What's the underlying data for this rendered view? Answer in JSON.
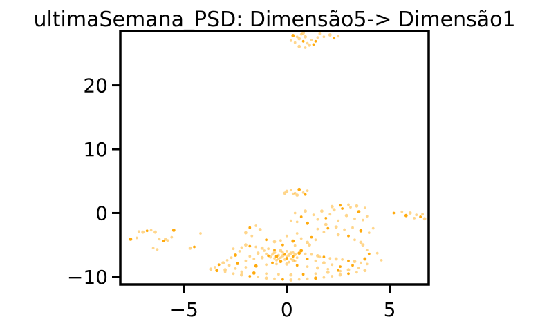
{
  "chart_data": {
    "type": "scatter",
    "title": "ultimaSemana_PSD: Dimensão5-> Dimensão1",
    "xlabel": "",
    "ylabel": "",
    "xlim": [
      -8.1,
      6.9
    ],
    "ylim": [
      -11.2,
      28.5
    ],
    "xticks": [
      {
        "value": -5,
        "label": "−5"
      },
      {
        "value": 0,
        "label": "0"
      },
      {
        "value": 5,
        "label": "5"
      }
    ],
    "yticks": [
      {
        "value": -10,
        "label": "−10"
      },
      {
        "value": 0,
        "label": "0"
      },
      {
        "value": 10,
        "label": "10"
      },
      {
        "value": 20,
        "label": "20"
      }
    ],
    "grid": false,
    "legend": "none",
    "point_color": "#FFA500",
    "series": [
      {
        "points": [
          [
            -7.6,
            -4.1
          ],
          [
            -7.3,
            -3.9
          ],
          [
            -7.2,
            -2.9
          ],
          [
            -7.0,
            -3.0
          ],
          [
            -6.8,
            -2.8
          ],
          [
            -6.6,
            -2.7
          ],
          [
            -6.4,
            -3.0
          ],
          [
            -6.2,
            -4.1
          ],
          [
            -6.0,
            -4.4
          ],
          [
            -5.9,
            -4.1
          ],
          [
            -5.8,
            -4.3
          ],
          [
            -5.6,
            -3.8
          ],
          [
            -5.5,
            -2.7
          ],
          [
            -6.5,
            -5.5
          ],
          [
            -6.3,
            -5.7
          ],
          [
            -4.7,
            -5.5
          ],
          [
            -4.5,
            -5.3
          ],
          [
            -4.2,
            -3.2
          ],
          [
            -3.7,
            -8.8
          ],
          [
            -3.5,
            -8.5
          ],
          [
            -3.3,
            -8.1
          ],
          [
            -3.1,
            -7.8
          ],
          [
            -2.9,
            -7.4
          ],
          [
            -2.7,
            -7.0
          ],
          [
            -2.5,
            -6.6
          ],
          [
            -2.3,
            -6.0
          ],
          [
            -2.2,
            -5.4
          ],
          [
            -2.0,
            -5.0
          ],
          [
            -1.8,
            -5.2
          ],
          [
            -1.5,
            -5.3
          ],
          [
            -1.2,
            -5.5
          ],
          [
            -0.9,
            -5.6
          ],
          [
            -0.6,
            -5.8
          ],
          [
            -0.3,
            -5.9
          ],
          [
            0.0,
            -6.0
          ],
          [
            0.3,
            -6.2
          ],
          [
            0.6,
            -6.3
          ],
          [
            0.9,
            -6.4
          ],
          [
            1.2,
            -6.5
          ],
          [
            1.5,
            -6.7
          ],
          [
            1.8,
            -6.9
          ],
          [
            2.1,
            -7.1
          ],
          [
            2.4,
            -7.2
          ],
          [
            2.7,
            -7.3
          ],
          [
            3.0,
            -7.5
          ],
          [
            3.3,
            -7.6
          ],
          [
            3.6,
            -7.8
          ],
          [
            3.9,
            -8.0
          ],
          [
            -3.4,
            -9.0
          ],
          [
            -3.0,
            -9.2
          ],
          [
            -2.6,
            -9.5
          ],
          [
            -2.2,
            -9.7
          ],
          [
            -1.8,
            -9.9
          ],
          [
            -1.4,
            -10.0
          ],
          [
            -1.0,
            -10.2
          ],
          [
            -0.6,
            -10.3
          ],
          [
            -0.2,
            -10.4
          ],
          [
            0.2,
            -10.5
          ],
          [
            0.6,
            -10.4
          ],
          [
            1.0,
            -10.3
          ],
          [
            1.4,
            -10.2
          ],
          [
            1.8,
            -10.1
          ],
          [
            2.2,
            -9.9
          ],
          [
            2.6,
            -9.7
          ],
          [
            3.0,
            -9.5
          ],
          [
            3.4,
            -9.3
          ],
          [
            3.8,
            -9.0
          ],
          [
            -1.0,
            -6.4
          ],
          [
            -0.9,
            -6.7
          ],
          [
            -0.8,
            -6.9
          ],
          [
            -0.7,
            -6.5
          ],
          [
            -0.6,
            -7.1
          ],
          [
            -0.5,
            -6.8
          ],
          [
            -0.4,
            -6.6
          ],
          [
            -0.3,
            -7.0
          ],
          [
            -0.2,
            -6.7
          ],
          [
            -0.1,
            -6.5
          ],
          [
            0.0,
            -6.9
          ],
          [
            0.1,
            -6.6
          ],
          [
            0.2,
            -7.2
          ],
          [
            0.3,
            -6.8
          ],
          [
            0.4,
            -6.5
          ],
          [
            0.5,
            -7.0
          ],
          [
            -0.5,
            -7.4
          ],
          [
            -0.3,
            -7.6
          ],
          [
            -0.1,
            -7.3
          ],
          [
            0.1,
            -7.7
          ],
          [
            0.3,
            -7.4
          ],
          [
            -0.7,
            -7.8
          ],
          [
            -0.2,
            -6.2
          ],
          [
            0.2,
            -6.3
          ],
          [
            -0.4,
            -7.2
          ],
          [
            0.0,
            -7.1
          ],
          [
            -0.6,
            -6.2
          ],
          [
            0.4,
            -7.5
          ],
          [
            -2.8,
            -8.2
          ],
          [
            -2.4,
            -7.9
          ],
          [
            -2.0,
            -7.5
          ],
          [
            -1.6,
            -7.2
          ],
          [
            -1.2,
            -7.0
          ],
          [
            1.0,
            -7.2
          ],
          [
            1.4,
            -7.5
          ],
          [
            1.8,
            -7.8
          ],
          [
            2.2,
            -8.1
          ],
          [
            2.6,
            -8.4
          ],
          [
            -3.0,
            -8.9
          ],
          [
            -2.5,
            -8.7
          ],
          [
            -2.0,
            -8.5
          ],
          [
            -1.5,
            -8.3
          ],
          [
            -1.0,
            -8.1
          ],
          [
            -0.5,
            -8.0
          ],
          [
            0.0,
            -8.0
          ],
          [
            0.5,
            -8.2
          ],
          [
            1.0,
            -8.4
          ],
          [
            1.5,
            -8.6
          ],
          [
            2.0,
            -8.8
          ],
          [
            2.5,
            -9.0
          ],
          [
            3.0,
            -8.9
          ],
          [
            3.5,
            -8.6
          ],
          [
            -2.2,
            -9.2
          ],
          [
            -1.6,
            -9.4
          ],
          [
            -1.0,
            -9.5
          ],
          [
            -0.4,
            -9.6
          ],
          [
            0.2,
            -9.7
          ],
          [
            0.8,
            -9.6
          ],
          [
            1.4,
            -9.5
          ],
          [
            2.0,
            -9.3
          ],
          [
            2.6,
            -9.1
          ],
          [
            3.2,
            -8.2
          ],
          [
            -1.4,
            -6.3
          ],
          [
            -1.8,
            -6.8
          ],
          [
            1.6,
            -6.9
          ],
          [
            0.7,
            -5.9
          ],
          [
            -1.1,
            -5.9
          ],
          [
            -2.6,
            -5.6
          ],
          [
            -2.0,
            -3.1
          ],
          [
            -1.8,
            -2.3
          ],
          [
            -1.5,
            -2.0
          ],
          [
            -1.3,
            -2.6
          ],
          [
            -1.7,
            -3.6
          ],
          [
            -1.0,
            -4.2
          ],
          [
            -0.6,
            -4.5
          ],
          [
            -0.3,
            -4.3
          ],
          [
            0.0,
            -3.6
          ],
          [
            0.3,
            -4.4
          ],
          [
            0.5,
            -3.2
          ],
          [
            0.7,
            -4.0
          ],
          [
            1.0,
            -4.6
          ],
          [
            1.2,
            -3.8
          ],
          [
            1.4,
            -4.2
          ],
          [
            1.1,
            -5.0
          ],
          [
            0.4,
            -5.1
          ],
          [
            -0.2,
            -5.0
          ],
          [
            0.0,
            3.4
          ],
          [
            0.2,
            3.6
          ],
          [
            0.4,
            3.1
          ],
          [
            0.6,
            3.7
          ],
          [
            0.8,
            3.2
          ],
          [
            1.0,
            3.5
          ],
          [
            0.5,
            2.8
          ],
          [
            0.9,
            2.9
          ],
          [
            0.3,
            3.0
          ],
          [
            -0.1,
            3.1
          ],
          [
            0.4,
            0.0
          ],
          [
            0.7,
            -0.6
          ],
          [
            0.9,
            0.3
          ],
          [
            0.5,
            -1.4
          ],
          [
            0.2,
            -1.2
          ],
          [
            1.0,
            -1.6
          ],
          [
            1.3,
            -0.3
          ],
          [
            1.5,
            -1.0
          ],
          [
            1.7,
            0.3
          ],
          [
            1.9,
            -0.8
          ],
          [
            2.1,
            -0.2
          ],
          [
            2.3,
            0.5
          ],
          [
            2.5,
            -1.2
          ],
          [
            2.7,
            0.7
          ],
          [
            2.9,
            -0.4
          ],
          [
            3.1,
            0.9
          ],
          [
            3.3,
            -0.9
          ],
          [
            3.5,
            0.2
          ],
          [
            3.7,
            -1.1
          ],
          [
            3.9,
            -0.5
          ],
          [
            2.2,
            1.0
          ],
          [
            2.6,
            1.2
          ],
          [
            3.0,
            1.3
          ],
          [
            3.4,
            1.1
          ],
          [
            3.8,
            0.8
          ],
          [
            2.0,
            -2.4
          ],
          [
            2.4,
            -2.2
          ],
          [
            2.8,
            -2.6
          ],
          [
            3.2,
            -2.3
          ],
          [
            3.6,
            -2.8
          ],
          [
            4.0,
            -3.1
          ],
          [
            4.2,
            -2.4
          ],
          [
            2.5,
            -3.4
          ],
          [
            3.0,
            -3.6
          ],
          [
            3.3,
            -4.2
          ],
          [
            3.7,
            -5.0
          ],
          [
            3.9,
            -5.8
          ],
          [
            4.0,
            -6.4
          ],
          [
            3.6,
            -4.6
          ],
          [
            4.4,
            -6.3
          ],
          [
            4.6,
            -7.4
          ],
          [
            3.8,
            -7.2
          ],
          [
            1.8,
            -3.0
          ],
          [
            1.5,
            -2.5
          ],
          [
            1.9,
            -1.8
          ],
          [
            5.2,
            0.0
          ],
          [
            5.6,
            0.2
          ],
          [
            6.0,
            0.0
          ],
          [
            6.3,
            -0.3
          ],
          [
            6.5,
            -0.6
          ],
          [
            6.7,
            -0.9
          ],
          [
            6.6,
            -0.2
          ],
          [
            6.2,
            -0.8
          ],
          [
            5.8,
            -0.4
          ],
          [
            0.2,
            27.0
          ],
          [
            0.4,
            26.7
          ],
          [
            0.6,
            27.3
          ],
          [
            0.8,
            26.9
          ],
          [
            1.0,
            26.6
          ],
          [
            1.1,
            26.3
          ],
          [
            1.2,
            27.1
          ],
          [
            1.3,
            26.4
          ],
          [
            0.9,
            27.6
          ],
          [
            0.7,
            28.0
          ],
          [
            0.5,
            27.6
          ],
          [
            0.3,
            27.8
          ],
          [
            1.5,
            27.5
          ],
          [
            1.8,
            27.6
          ],
          [
            2.1,
            27.9
          ],
          [
            2.3,
            27.4
          ],
          [
            2.5,
            27.7
          ],
          [
            0.6,
            26.1
          ],
          [
            0.9,
            25.9
          ],
          [
            1.4,
            26.9
          ],
          [
            0.8,
            28.2
          ],
          [
            1.6,
            28.1
          ]
        ]
      }
    ]
  }
}
